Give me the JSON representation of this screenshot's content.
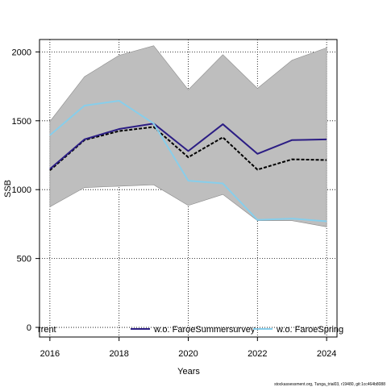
{
  "chart_data": {
    "type": "line",
    "xlabel": "Years",
    "ylabel": "SSB",
    "xlim": [
      2015.7,
      2024.3
    ],
    "ylim": [
      -70,
      2090
    ],
    "x_ticks": [
      2016,
      2018,
      2020,
      2022,
      2024
    ],
    "y_ticks": [
      0,
      500,
      1000,
      1500,
      2000
    ],
    "grid": true,
    "x": [
      2016,
      2017,
      2018,
      2019,
      2020,
      2021,
      2022,
      2023,
      2024
    ],
    "band": {
      "upper": [
        1495,
        1820,
        1975,
        2045,
        1725,
        1980,
        1735,
        1940,
        2030
      ],
      "lower": [
        875,
        1015,
        1025,
        1035,
        885,
        965,
        775,
        775,
        730
      ],
      "color": "#bebebe"
    },
    "series": [
      {
        "name": "",
        "color": "#000000",
        "dashed": true,
        "values": [
          1140,
          1360,
          1425,
          1455,
          1235,
          1380,
          1145,
          1220,
          1215
        ]
      },
      {
        "name": "w.o. FaroeSummersurvey",
        "color": "#2b1d84",
        "dashed": false,
        "values": [
          1150,
          1365,
          1440,
          1480,
          1280,
          1475,
          1260,
          1360,
          1365
        ]
      },
      {
        "name": "w.o. FaroeSpringsurvey",
        "color": "#87ceeb",
        "dashed": false,
        "values": [
          1395,
          1610,
          1645,
          1480,
          1065,
          1045,
          780,
          790,
          770
        ]
      }
    ],
    "legend": {
      "placement": "bottom",
      "entries": [
        "rrent",
        "w.o. FaroeSummersurvey",
        "w.o. FaroeSpring"
      ]
    }
  },
  "footer": "stockassessment.org, Tunga_trial03, r19480, git:1cc464b8088"
}
